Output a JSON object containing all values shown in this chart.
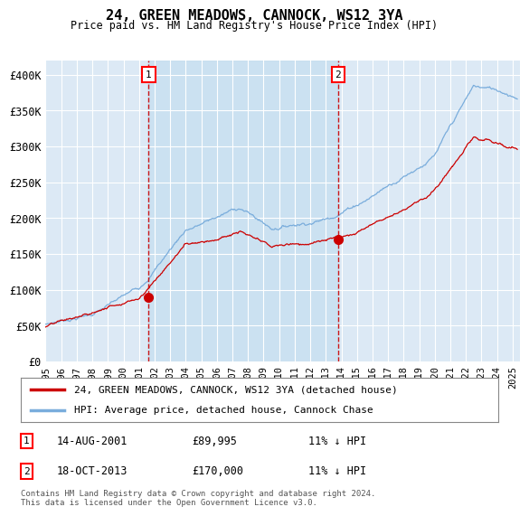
{
  "title": "24, GREEN MEADOWS, CANNOCK, WS12 3YA",
  "subtitle": "Price paid vs. HM Land Registry's House Price Index (HPI)",
  "ylabel_ticks": [
    "£0",
    "£50K",
    "£100K",
    "£150K",
    "£200K",
    "£250K",
    "£300K",
    "£350K",
    "£400K"
  ],
  "ytick_values": [
    0,
    50000,
    100000,
    150000,
    200000,
    250000,
    300000,
    350000,
    400000
  ],
  "ylim": [
    0,
    420000
  ],
  "xlim_start": 1995.0,
  "xlim_end": 2025.5,
  "plot_bg": "#dce9f5",
  "hpi_color": "#7aaddc",
  "price_color": "#cc0000",
  "marker1_date": 2001.62,
  "marker1_price": 89995,
  "marker2_date": 2013.79,
  "marker2_price": 170000,
  "legend_label_red": "24, GREEN MEADOWS, CANNOCK, WS12 3YA (detached house)",
  "legend_label_blue": "HPI: Average price, detached house, Cannock Chase",
  "annotation1_date": "14-AUG-2001",
  "annotation1_price": "£89,995",
  "annotation1_hpi": "11% ↓ HPI",
  "annotation2_date": "18-OCT-2013",
  "annotation2_price": "£170,000",
  "annotation2_hpi": "11% ↓ HPI",
  "footer": "Contains HM Land Registry data © Crown copyright and database right 2024.\nThis data is licensed under the Open Government Licence v3.0.",
  "grid_color": "#cccccc",
  "vline_color": "#cc0000",
  "shade_color": "#c5dff0"
}
